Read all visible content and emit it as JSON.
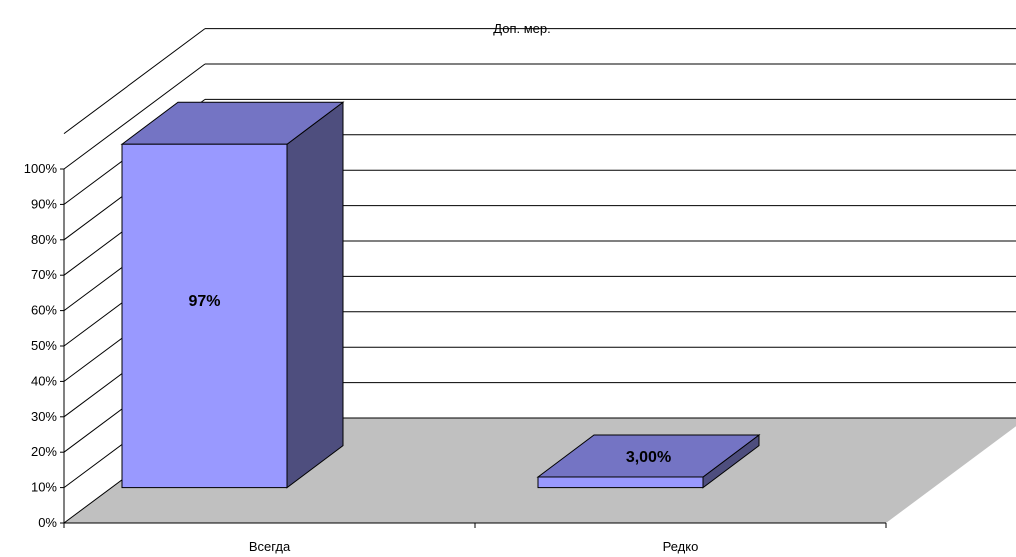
{
  "chart_data": {
    "type": "bar",
    "title": "Доп. мер.",
    "categories": [
      "Всегда",
      "Редко"
    ],
    "values": [
      97,
      3
    ],
    "data_labels": [
      "97%",
      "3,00%"
    ],
    "ylim": [
      0,
      100
    ],
    "y_ticks": [
      "0%",
      "10%",
      "20%",
      "30%",
      "40%",
      "50%",
      "60%",
      "70%",
      "80%",
      "90%",
      "100%"
    ],
    "xlabel": "",
    "ylabel": "",
    "grid": true,
    "legend": "none",
    "three_d": true,
    "colors": {
      "bar_front": "#9999ff",
      "bar_top": "#7474c4",
      "bar_side": "#4e4e7e",
      "floor": "#c0c0c0",
      "gridline": "#000000"
    }
  }
}
